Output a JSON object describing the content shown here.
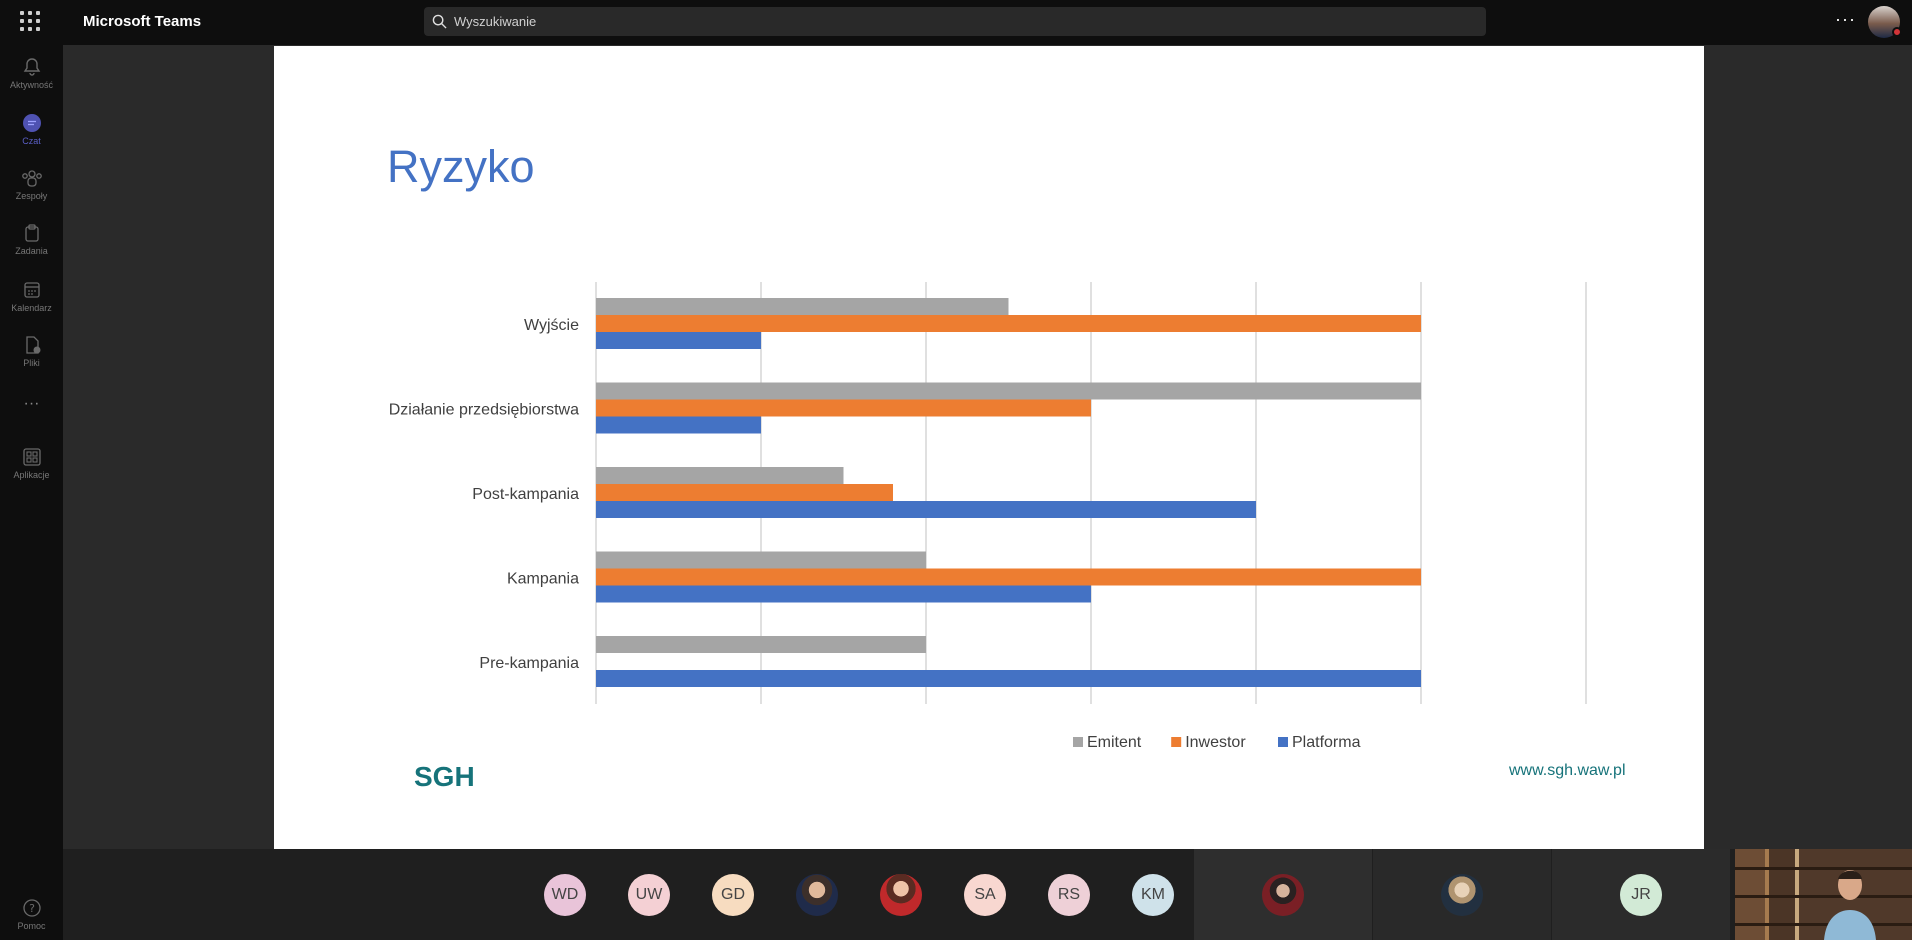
{
  "app": {
    "title": "Microsoft Teams"
  },
  "search": {
    "placeholder": "Wyszukiwanie"
  },
  "header": {
    "more_icon": "more-horizontal-icon"
  },
  "rail": {
    "items": [
      {
        "label": "Aktywność",
        "icon": "bell-icon"
      },
      {
        "label": "Czat",
        "icon": "chat-icon"
      },
      {
        "label": "Zespoły",
        "icon": "teams-icon"
      },
      {
        "label": "Zadania",
        "icon": "tasks-icon"
      },
      {
        "label": "Kalendarz",
        "icon": "calendar-icon"
      },
      {
        "label": "Pliki",
        "icon": "file-icon"
      },
      {
        "label": "",
        "icon": "more-horizontal-icon"
      },
      {
        "label": "Aplikacje",
        "icon": "apps-icon"
      }
    ],
    "help": {
      "label": "Pomoc",
      "icon": "help-icon"
    }
  },
  "slide": {
    "title": "Ryzyko",
    "logo": "SGH",
    "url": "www.sgh.waw.pl"
  },
  "chart_data": {
    "type": "bar",
    "orientation": "horizontal",
    "categories": [
      "Wyjście",
      "Działanie przedsiębiorstwa",
      "Post-kampania",
      "Kampania",
      "Pre-kampania"
    ],
    "series": [
      {
        "name": "Emitent",
        "color": "#a5a5a5",
        "values": [
          2.5,
          5,
          1.5,
          2,
          2
        ]
      },
      {
        "name": "Inwestor",
        "color": "#ed7d31",
        "values": [
          5,
          3,
          1.8,
          5,
          0
        ]
      },
      {
        "name": "Platforma",
        "color": "#4472c4",
        "values": [
          1,
          1,
          4,
          3,
          5
        ]
      }
    ],
    "xlim": [
      0,
      6
    ],
    "grid": true,
    "legend": "bottom"
  },
  "participants": [
    {
      "initials": "WD",
      "bg": "#e9c4d9"
    },
    {
      "initials": "UW",
      "bg": "#f4d0d4"
    },
    {
      "initials": "GD",
      "bg": "#f7dcc0"
    },
    {
      "initials": "",
      "bg": "photo"
    },
    {
      "initials": "",
      "bg": "photo2"
    },
    {
      "initials": "SA",
      "bg": "#f8d7d0"
    },
    {
      "initials": "RS",
      "bg": "#eed0d7"
    },
    {
      "initials": "KM",
      "bg": "#cfe2ea"
    }
  ],
  "featured": [
    {
      "initials": "",
      "bg": "photo3"
    },
    {
      "initials": "",
      "bg": "photo4"
    },
    {
      "initials": "JR",
      "bg": "#d2ead6"
    }
  ]
}
